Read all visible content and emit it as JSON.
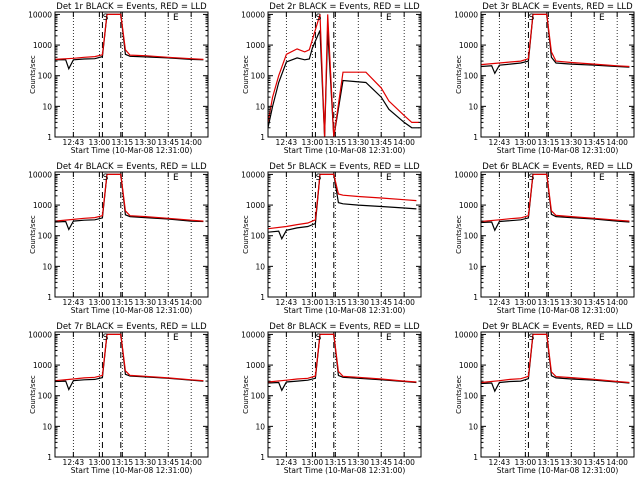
{
  "figure": {
    "subtitle_common": "Start Time (10-Mar-08 12:31:00)",
    "ylabel": "Counts/sec",
    "colors": {
      "events": "#000000",
      "lld": "#e00000",
      "axis": "#000000"
    }
  },
  "chart_data": [
    {
      "type": "line",
      "title": "Det 1r BLACK = Events, RED = LLD",
      "xlabel": "Start Time (10-Mar-08 12:31:00)",
      "ylabel": "Counts/sec",
      "ylog": true,
      "ylim": [
        1,
        12000
      ],
      "xlim": [
        "12:31",
        "14:11"
      ],
      "x_ticks": [
        "12:43",
        "13:00",
        "13:15",
        "13:30",
        "13:45",
        "14:00"
      ],
      "y_ticks": [
        "1",
        "10",
        "100",
        "1000",
        "10000"
      ],
      "markers": [
        "S",
        "E"
      ],
      "series": [
        {
          "name": "Events",
          "color": "#000000",
          "x": [
            "12:31",
            "12:38",
            "12:40",
            "12:43",
            "12:50",
            "12:57",
            "13:02",
            "13:05",
            "13:10",
            "13:14",
            "13:17",
            "13:20",
            "13:30",
            "13:45",
            "14:00",
            "14:08"
          ],
          "y": [
            330,
            330,
            170,
            330,
            350,
            360,
            420,
            10000,
            10000,
            10000,
            500,
            430,
            410,
            380,
            340,
            330
          ]
        },
        {
          "name": "LLD",
          "color": "#e00000",
          "x": [
            "12:31",
            "12:43",
            "12:50",
            "12:57",
            "13:02",
            "13:05",
            "13:10",
            "13:14",
            "13:17",
            "13:20",
            "13:30",
            "13:45",
            "14:00",
            "14:08"
          ],
          "y": [
            340,
            370,
            400,
            420,
            480,
            10000,
            10000,
            10000,
            700,
            470,
            450,
            400,
            360,
            340
          ]
        }
      ]
    },
    {
      "type": "line",
      "title": "Det 2r BLACK = Events, RED = LLD",
      "xlabel": "Start Time (10-Mar-08 12:31:00)",
      "ylabel": "Counts/sec",
      "ylog": true,
      "ylim": [
        1,
        12000
      ],
      "xlim": [
        "12:31",
        "14:11"
      ],
      "x_ticks": [
        "12:43",
        "13:00",
        "13:15",
        "13:30",
        "13:45",
        "14:00"
      ],
      "y_ticks": [
        "1",
        "10",
        "100",
        "1000",
        "10000"
      ],
      "markers": [
        "S",
        "E"
      ],
      "series": [
        {
          "name": "Events",
          "color": "#000000",
          "x": [
            "12:31",
            "12:34",
            "12:38",
            "12:43",
            "12:50",
            "12:55",
            "12:58",
            "13:00",
            "13:05",
            "13:08",
            "13:10",
            "13:14",
            "13:20",
            "13:35",
            "13:45",
            "13:50",
            "14:00",
            "14:05",
            "14:10"
          ],
          "y": [
            2,
            10,
            60,
            280,
            380,
            330,
            350,
            800,
            3000,
            1,
            3000,
            1,
            70,
            60,
            20,
            8,
            3,
            2,
            2
          ]
        },
        {
          "name": "LLD",
          "color": "#e00000",
          "x": [
            "12:31",
            "12:34",
            "12:38",
            "12:43",
            "12:50",
            "12:55",
            "12:58",
            "13:00",
            "13:05",
            "13:08",
            "13:10",
            "13:14",
            "13:20",
            "13:35",
            "13:45",
            "13:50",
            "14:00",
            "14:05",
            "14:10"
          ],
          "y": [
            3,
            20,
            100,
            500,
            750,
            600,
            700,
            1500,
            10000,
            1,
            10000,
            1,
            130,
            130,
            40,
            15,
            5,
            3,
            3
          ]
        }
      ]
    },
    {
      "type": "line",
      "title": "Det 3r BLACK = Events, RED = LLD",
      "xlabel": "Start Time (10-Mar-08 12:31:00)",
      "ylabel": "Counts/sec",
      "ylog": true,
      "ylim": [
        1,
        12000
      ],
      "xlim": [
        "12:31",
        "14:11"
      ],
      "x_ticks": [
        "12:43",
        "13:00",
        "13:15",
        "13:30",
        "13:45",
        "14:00"
      ],
      "y_ticks": [
        "1",
        "10",
        "100",
        "1000",
        "10000"
      ],
      "markers": [
        "S",
        "E"
      ],
      "series": [
        {
          "name": "Events",
          "color": "#000000",
          "x": [
            "12:31",
            "12:38",
            "12:40",
            "12:43",
            "12:50",
            "12:57",
            "13:02",
            "13:05",
            "13:10",
            "13:14",
            "13:17",
            "13:20",
            "13:30",
            "13:45",
            "14:00",
            "14:08"
          ],
          "y": [
            200,
            210,
            120,
            220,
            240,
            260,
            300,
            10000,
            10000,
            10000,
            400,
            260,
            240,
            220,
            200,
            190
          ]
        },
        {
          "name": "LLD",
          "color": "#e00000",
          "x": [
            "12:31",
            "12:43",
            "12:50",
            "12:57",
            "13:02",
            "13:05",
            "13:10",
            "13:14",
            "13:17",
            "13:20",
            "13:30",
            "13:45",
            "14:00",
            "14:08"
          ],
          "y": [
            230,
            260,
            280,
            300,
            360,
            10000,
            10000,
            10000,
            600,
            300,
            270,
            240,
            210,
            200
          ]
        }
      ]
    },
    {
      "type": "line",
      "title": "Det 4r BLACK = Events, RED = LLD",
      "xlabel": "Start Time (10-Mar-08 12:31:00)",
      "ylabel": "Counts/sec",
      "ylog": true,
      "ylim": [
        1,
        12000
      ],
      "xlim": [
        "12:31",
        "14:11"
      ],
      "x_ticks": [
        "12:43",
        "13:00",
        "13:15",
        "13:30",
        "13:45",
        "14:00"
      ],
      "y_ticks": [
        "1",
        "10",
        "100",
        "1000",
        "10000"
      ],
      "markers": [
        "S",
        "E"
      ],
      "series": [
        {
          "name": "Events",
          "color": "#000000",
          "x": [
            "12:31",
            "12:38",
            "12:40",
            "12:43",
            "12:50",
            "12:57",
            "13:02",
            "13:05",
            "13:10",
            "13:14",
            "13:17",
            "13:20",
            "13:30",
            "13:45",
            "14:00",
            "14:08"
          ],
          "y": [
            280,
            290,
            160,
            300,
            320,
            330,
            380,
            10000,
            10000,
            10000,
            480,
            420,
            390,
            350,
            300,
            290
          ]
        },
        {
          "name": "LLD",
          "color": "#e00000",
          "x": [
            "12:31",
            "12:43",
            "12:50",
            "12:57",
            "13:02",
            "13:05",
            "13:10",
            "13:14",
            "13:17",
            "13:20",
            "13:30",
            "13:45",
            "14:00",
            "14:08"
          ],
          "y": [
            300,
            340,
            370,
            390,
            450,
            10000,
            10000,
            10000,
            650,
            450,
            420,
            370,
            320,
            300
          ]
        }
      ]
    },
    {
      "type": "line",
      "title": "Det 5r BLACK = Events, RED = LLD",
      "xlabel": "Start Time (10-Mar-08 12:31:00)",
      "ylabel": "Counts/sec",
      "ylog": true,
      "ylim": [
        1,
        12000
      ],
      "xlim": [
        "12:31",
        "14:11"
      ],
      "x_ticks": [
        "12:43",
        "13:00",
        "13:15",
        "13:30",
        "13:45",
        "14:00"
      ],
      "y_ticks": [
        "1",
        "10",
        "100",
        "1000",
        "10000"
      ],
      "markers": [
        "S",
        "E"
      ],
      "series": [
        {
          "name": "Events",
          "color": "#000000",
          "x": [
            "12:31",
            "12:38",
            "12:40",
            "12:43",
            "12:50",
            "12:57",
            "13:02",
            "13:05",
            "13:10",
            "13:14",
            "13:17",
            "13:20",
            "13:30",
            "13:45",
            "14:00",
            "14:08"
          ],
          "y": [
            130,
            140,
            80,
            150,
            180,
            200,
            250,
            10000,
            10000,
            10000,
            1200,
            1100,
            1000,
            900,
            800,
            750
          ]
        },
        {
          "name": "LLD",
          "color": "#e00000",
          "x": [
            "12:31",
            "12:43",
            "12:50",
            "12:57",
            "13:02",
            "13:05",
            "13:10",
            "13:14",
            "13:17",
            "13:20",
            "13:30",
            "13:45",
            "14:00",
            "14:08"
          ],
          "y": [
            170,
            200,
            230,
            260,
            330,
            10000,
            10000,
            10000,
            2300,
            2100,
            1900,
            1700,
            1500,
            1400
          ]
        }
      ]
    },
    {
      "type": "line",
      "title": "Det 6r BLACK = Events, RED = LLD",
      "xlabel": "Start Time (10-Mar-08 12:31:00)",
      "ylabel": "Counts/sec",
      "ylog": true,
      "ylim": [
        1,
        12000
      ],
      "xlim": [
        "12:31",
        "14:11"
      ],
      "x_ticks": [
        "12:43",
        "13:00",
        "13:15",
        "13:30",
        "13:45",
        "14:00"
      ],
      "y_ticks": [
        "1",
        "10",
        "100",
        "1000",
        "10000"
      ],
      "markers": [
        "S",
        "E"
      ],
      "series": [
        {
          "name": "Events",
          "color": "#000000",
          "x": [
            "12:31",
            "12:38",
            "12:40",
            "12:43",
            "12:50",
            "12:57",
            "13:02",
            "13:05",
            "13:10",
            "13:14",
            "13:17",
            "13:20",
            "13:30",
            "13:45",
            "14:00",
            "14:08"
          ],
          "y": [
            270,
            280,
            150,
            290,
            310,
            330,
            380,
            10000,
            10000,
            10000,
            500,
            420,
            390,
            350,
            300,
            280
          ]
        },
        {
          "name": "LLD",
          "color": "#e00000",
          "x": [
            "12:31",
            "12:43",
            "12:50",
            "12:57",
            "13:02",
            "13:05",
            "13:10",
            "13:14",
            "13:17",
            "13:20",
            "13:30",
            "13:45",
            "14:00",
            "14:08"
          ],
          "y": [
            290,
            330,
            360,
            380,
            450,
            10000,
            10000,
            10000,
            650,
            460,
            420,
            370,
            320,
            300
          ]
        }
      ]
    },
    {
      "type": "line",
      "title": "Det 7r BLACK = Events, RED = LLD",
      "xlabel": "Start Time (10-Mar-08 12:31:00)",
      "ylabel": "Counts/sec",
      "ylog": true,
      "ylim": [
        1,
        12000
      ],
      "xlim": [
        "12:31",
        "14:11"
      ],
      "x_ticks": [
        "12:43",
        "13:00",
        "13:15",
        "13:30",
        "13:45",
        "14:00"
      ],
      "y_ticks": [
        "1",
        "10",
        "100",
        "1000",
        "10000"
      ],
      "markers": [
        "S",
        "E"
      ],
      "series": [
        {
          "name": "Events",
          "color": "#000000",
          "x": [
            "12:31",
            "12:38",
            "12:40",
            "12:43",
            "12:50",
            "12:57",
            "13:02",
            "13:05",
            "13:10",
            "13:14",
            "13:17",
            "13:20",
            "13:30",
            "13:45",
            "14:00",
            "14:08"
          ],
          "y": [
            290,
            300,
            160,
            310,
            330,
            340,
            390,
            10000,
            10000,
            10000,
            500,
            440,
            410,
            370,
            320,
            300
          ]
        },
        {
          "name": "LLD",
          "color": "#e00000",
          "x": [
            "12:31",
            "12:43",
            "12:50",
            "12:57",
            "13:02",
            "13:05",
            "13:10",
            "13:14",
            "13:17",
            "13:20",
            "13:30",
            "13:45",
            "14:00",
            "14:08"
          ],
          "y": [
            310,
            350,
            380,
            400,
            460,
            10000,
            10000,
            10000,
            650,
            460,
            430,
            380,
            330,
            310
          ]
        }
      ]
    },
    {
      "type": "line",
      "title": "Det 8r BLACK = Events, RED = LLD",
      "xlabel": "Start Time (10-Mar-08 12:31:00)",
      "ylabel": "Counts/sec",
      "ylog": true,
      "ylim": [
        1,
        12000
      ],
      "xlim": [
        "12:31",
        "14:11"
      ],
      "x_ticks": [
        "12:43",
        "13:00",
        "13:15",
        "13:30",
        "13:45",
        "14:00"
      ],
      "y_ticks": [
        "1",
        "10",
        "100",
        "1000",
        "10000"
      ],
      "markers": [
        "S",
        "E"
      ],
      "series": [
        {
          "name": "Events",
          "color": "#000000",
          "x": [
            "12:31",
            "12:38",
            "12:40",
            "12:43",
            "12:50",
            "12:57",
            "13:02",
            "13:05",
            "13:10",
            "13:14",
            "13:17",
            "13:20",
            "13:30",
            "13:45",
            "14:00",
            "14:08"
          ],
          "y": [
            260,
            270,
            150,
            280,
            300,
            320,
            370,
            10000,
            10000,
            10000,
            460,
            400,
            370,
            330,
            290,
            270
          ]
        },
        {
          "name": "LLD",
          "color": "#e00000",
          "x": [
            "12:31",
            "12:43",
            "12:50",
            "12:57",
            "13:02",
            "13:05",
            "13:10",
            "13:14",
            "13:17",
            "13:20",
            "13:30",
            "13:45",
            "14:00",
            "14:08"
          ],
          "y": [
            280,
            320,
            350,
            370,
            440,
            10000,
            10000,
            10000,
            620,
            430,
            400,
            350,
            300,
            280
          ]
        }
      ]
    },
    {
      "type": "line",
      "title": "Det 9r BLACK = Events, RED = LLD",
      "xlabel": "Start Time (10-Mar-08 12:31:00)",
      "ylabel": "Counts/sec",
      "ylog": true,
      "ylim": [
        1,
        12000
      ],
      "xlim": [
        "12:31",
        "14:11"
      ],
      "x_ticks": [
        "12:43",
        "13:00",
        "13:15",
        "13:30",
        "13:45",
        "14:00"
      ],
      "y_ticks": [
        "1",
        "10",
        "100",
        "1000",
        "10000"
      ],
      "markers": [
        "S",
        "E"
      ],
      "series": [
        {
          "name": "Events",
          "color": "#000000",
          "x": [
            "12:31",
            "12:38",
            "12:40",
            "12:43",
            "12:50",
            "12:57",
            "13:02",
            "13:05",
            "13:10",
            "13:14",
            "13:17",
            "13:20",
            "13:30",
            "13:45",
            "14:00",
            "14:08"
          ],
          "y": [
            250,
            260,
            140,
            270,
            290,
            300,
            360,
            10000,
            10000,
            10000,
            450,
            380,
            350,
            320,
            280,
            260
          ]
        },
        {
          "name": "LLD",
          "color": "#e00000",
          "x": [
            "12:31",
            "12:43",
            "12:50",
            "12:57",
            "13:02",
            "13:05",
            "13:10",
            "13:14",
            "13:17",
            "13:20",
            "13:30",
            "13:45",
            "14:00",
            "14:08"
          ],
          "y": [
            270,
            310,
            340,
            360,
            430,
            10000,
            10000,
            10000,
            600,
            420,
            390,
            340,
            290,
            270
          ]
        }
      ]
    }
  ]
}
